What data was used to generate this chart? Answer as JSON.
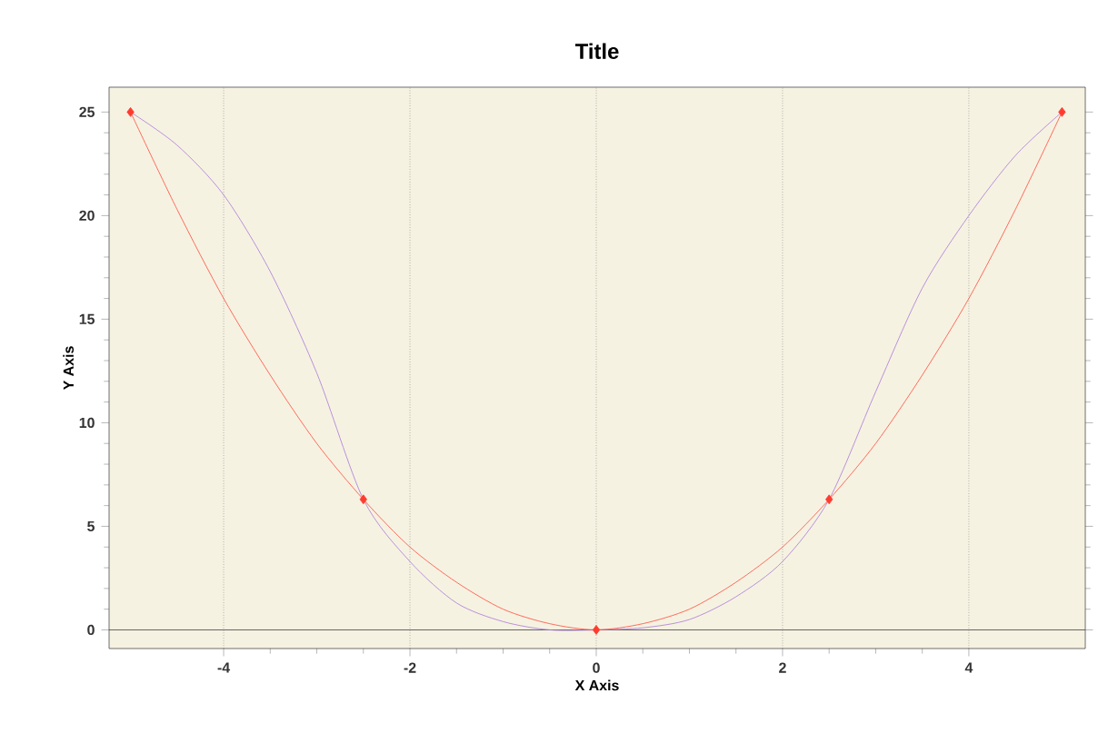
{
  "chart_data": {
    "type": "line",
    "title": "Title",
    "xlabel": "X Axis",
    "ylabel": "Y Axis",
    "xlim": [
      -5.23,
      5.25
    ],
    "ylim": [
      -0.9,
      26.2
    ],
    "xticks": [
      -4,
      -2,
      0,
      2,
      4
    ],
    "yticks": [
      0,
      5,
      10,
      15,
      20,
      25
    ],
    "grid": "x",
    "legend": false,
    "ref_lines": [
      {
        "axis": "y",
        "value": 0,
        "color": "#404040",
        "line_style": "solid"
      }
    ],
    "series": [
      {
        "color": "#a878d8",
        "marker": "none",
        "x": [
          -5,
          -4.5,
          -4,
          -3.5,
          -3,
          -2.5,
          -2,
          -1.5,
          -1,
          -0.5,
          0,
          0.5,
          1,
          1.5,
          2,
          2.5,
          3,
          3.5,
          4,
          4.5,
          5
        ],
        "values": [
          25,
          23.4,
          21,
          17.3,
          12.4,
          6.3,
          3.3,
          1.3,
          0.4,
          0,
          0,
          0.1,
          0.5,
          1.6,
          3.3,
          6.3,
          11.5,
          16.5,
          20,
          22.9,
          25
        ]
      },
      {
        "color": "#ff4a3a",
        "marker": "none",
        "x": [
          -5,
          -4.5,
          -4,
          -3.5,
          -3,
          -2.5,
          -2,
          -1.5,
          -1,
          -0.5,
          0,
          0.5,
          1,
          1.5,
          2,
          2.5,
          3,
          3.5,
          4,
          4.5,
          5
        ],
        "values": [
          25,
          20.3,
          16,
          12.3,
          9,
          6.3,
          4,
          2.3,
          1,
          0.3,
          0,
          0.3,
          1,
          2.3,
          4,
          6.3,
          9,
          12.3,
          16,
          20.3,
          25
        ]
      },
      {
        "type": "scatter",
        "color": "#ff3b2f",
        "marker": "diamond",
        "x": [
          -5,
          -2.5,
          0,
          2.5,
          5
        ],
        "values": [
          25,
          6.3,
          0,
          6.3,
          25
        ]
      }
    ]
  }
}
